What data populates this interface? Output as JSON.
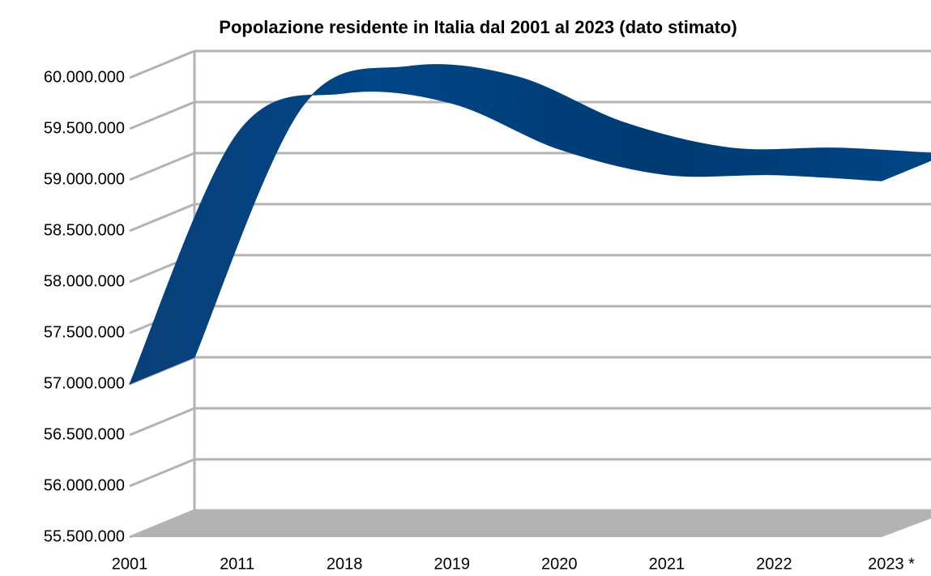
{
  "chart_data": {
    "type": "line3d",
    "title": "Popolazione residente in Italia dal 2001 al 2023 (dato stimato)",
    "categories": [
      "2001",
      "2011",
      "2018",
      "2019",
      "2020",
      "2021",
      "2022",
      "2023 *"
    ],
    "series": [
      {
        "name": "Popolazione residente",
        "color": "#004586",
        "values": [
          57000000,
          59450000,
          59850000,
          59750000,
          59300000,
          59050000,
          59050000,
          58990000
        ]
      }
    ],
    "ylim": [
      55500000,
      60000000
    ],
    "yticks": [
      {
        "value": 55500000,
        "label": "55.500.000"
      },
      {
        "value": 56000000,
        "label": "56.000.000"
      },
      {
        "value": 56500000,
        "label": "56.500.000"
      },
      {
        "value": 57000000,
        "label": "57.000.000"
      },
      {
        "value": 57500000,
        "label": "57.500.000"
      },
      {
        "value": 58000000,
        "label": "58.000.000"
      },
      {
        "value": 58500000,
        "label": "58.500.000"
      },
      {
        "value": 59000000,
        "label": "59.000.000"
      },
      {
        "value": 59500000,
        "label": "59.500.000"
      },
      {
        "value": 60000000,
        "label": "60.000.000"
      }
    ],
    "grid": true
  }
}
